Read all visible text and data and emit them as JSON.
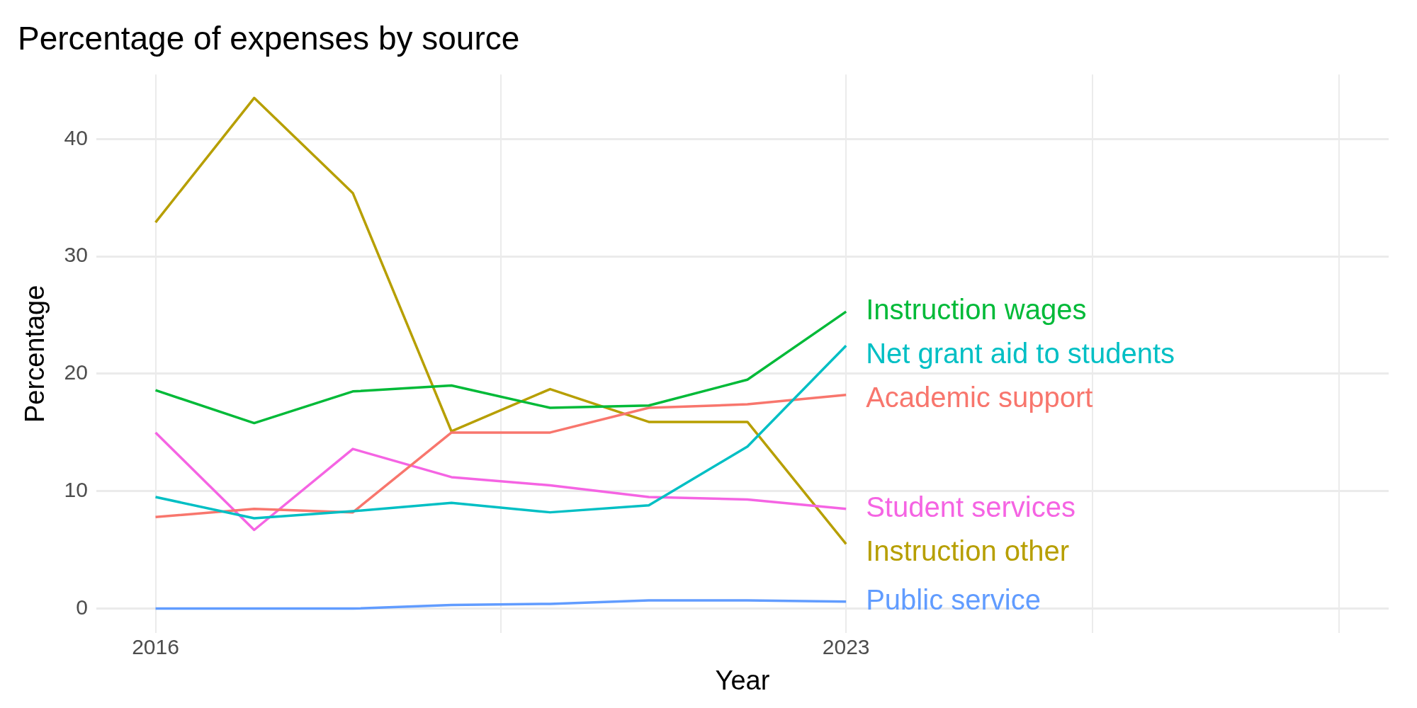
{
  "chart_data": {
    "type": "line",
    "title": "Percentage of expenses by source",
    "xlabel": "Year",
    "ylabel": "Percentage",
    "x": [
      2016,
      2017,
      2018,
      2019,
      2020,
      2021,
      2022,
      2023
    ],
    "series": [
      {
        "name": "Instruction wages",
        "color": "#00ba38",
        "values": [
          18.6,
          15.8,
          18.5,
          19.0,
          17.1,
          17.3,
          19.5,
          25.3
        ]
      },
      {
        "name": "Net grant aid to students",
        "color": "#00bfc4",
        "values": [
          9.5,
          7.7,
          8.3,
          9.0,
          8.2,
          8.8,
          13.8,
          22.4
        ]
      },
      {
        "name": "Academic support",
        "color": "#f8766d",
        "values": [
          7.8,
          8.5,
          8.2,
          15.0,
          15.0,
          17.1,
          17.4,
          18.2
        ]
      },
      {
        "name": "Student services",
        "color": "#f564e3",
        "values": [
          15.0,
          6.7,
          13.6,
          11.2,
          10.5,
          9.5,
          9.3,
          8.5
        ]
      },
      {
        "name": "Instruction other",
        "color": "#b79f00",
        "values": [
          32.9,
          43.5,
          35.4,
          15.1,
          18.7,
          15.9,
          15.9,
          5.5
        ]
      },
      {
        "name": "Public service",
        "color": "#619cff",
        "values": [
          0,
          0,
          0,
          0.3,
          0.4,
          0.7,
          0.7,
          0.6
        ]
      }
    ],
    "xlim": [
      2015.4,
      2028.5
    ],
    "xticks": [
      2016,
      {
        "value": 2019.5,
        "label": null
      },
      2023,
      {
        "value": 2025.5,
        "label": null
      },
      {
        "value": 2028,
        "label": null
      }
    ],
    "ylim": [
      -2.1,
      45.5
    ],
    "yticks": [
      0,
      10,
      20,
      30,
      40
    ],
    "grid": true,
    "legend": false,
    "marker": "none",
    "line_style": "solid"
  }
}
